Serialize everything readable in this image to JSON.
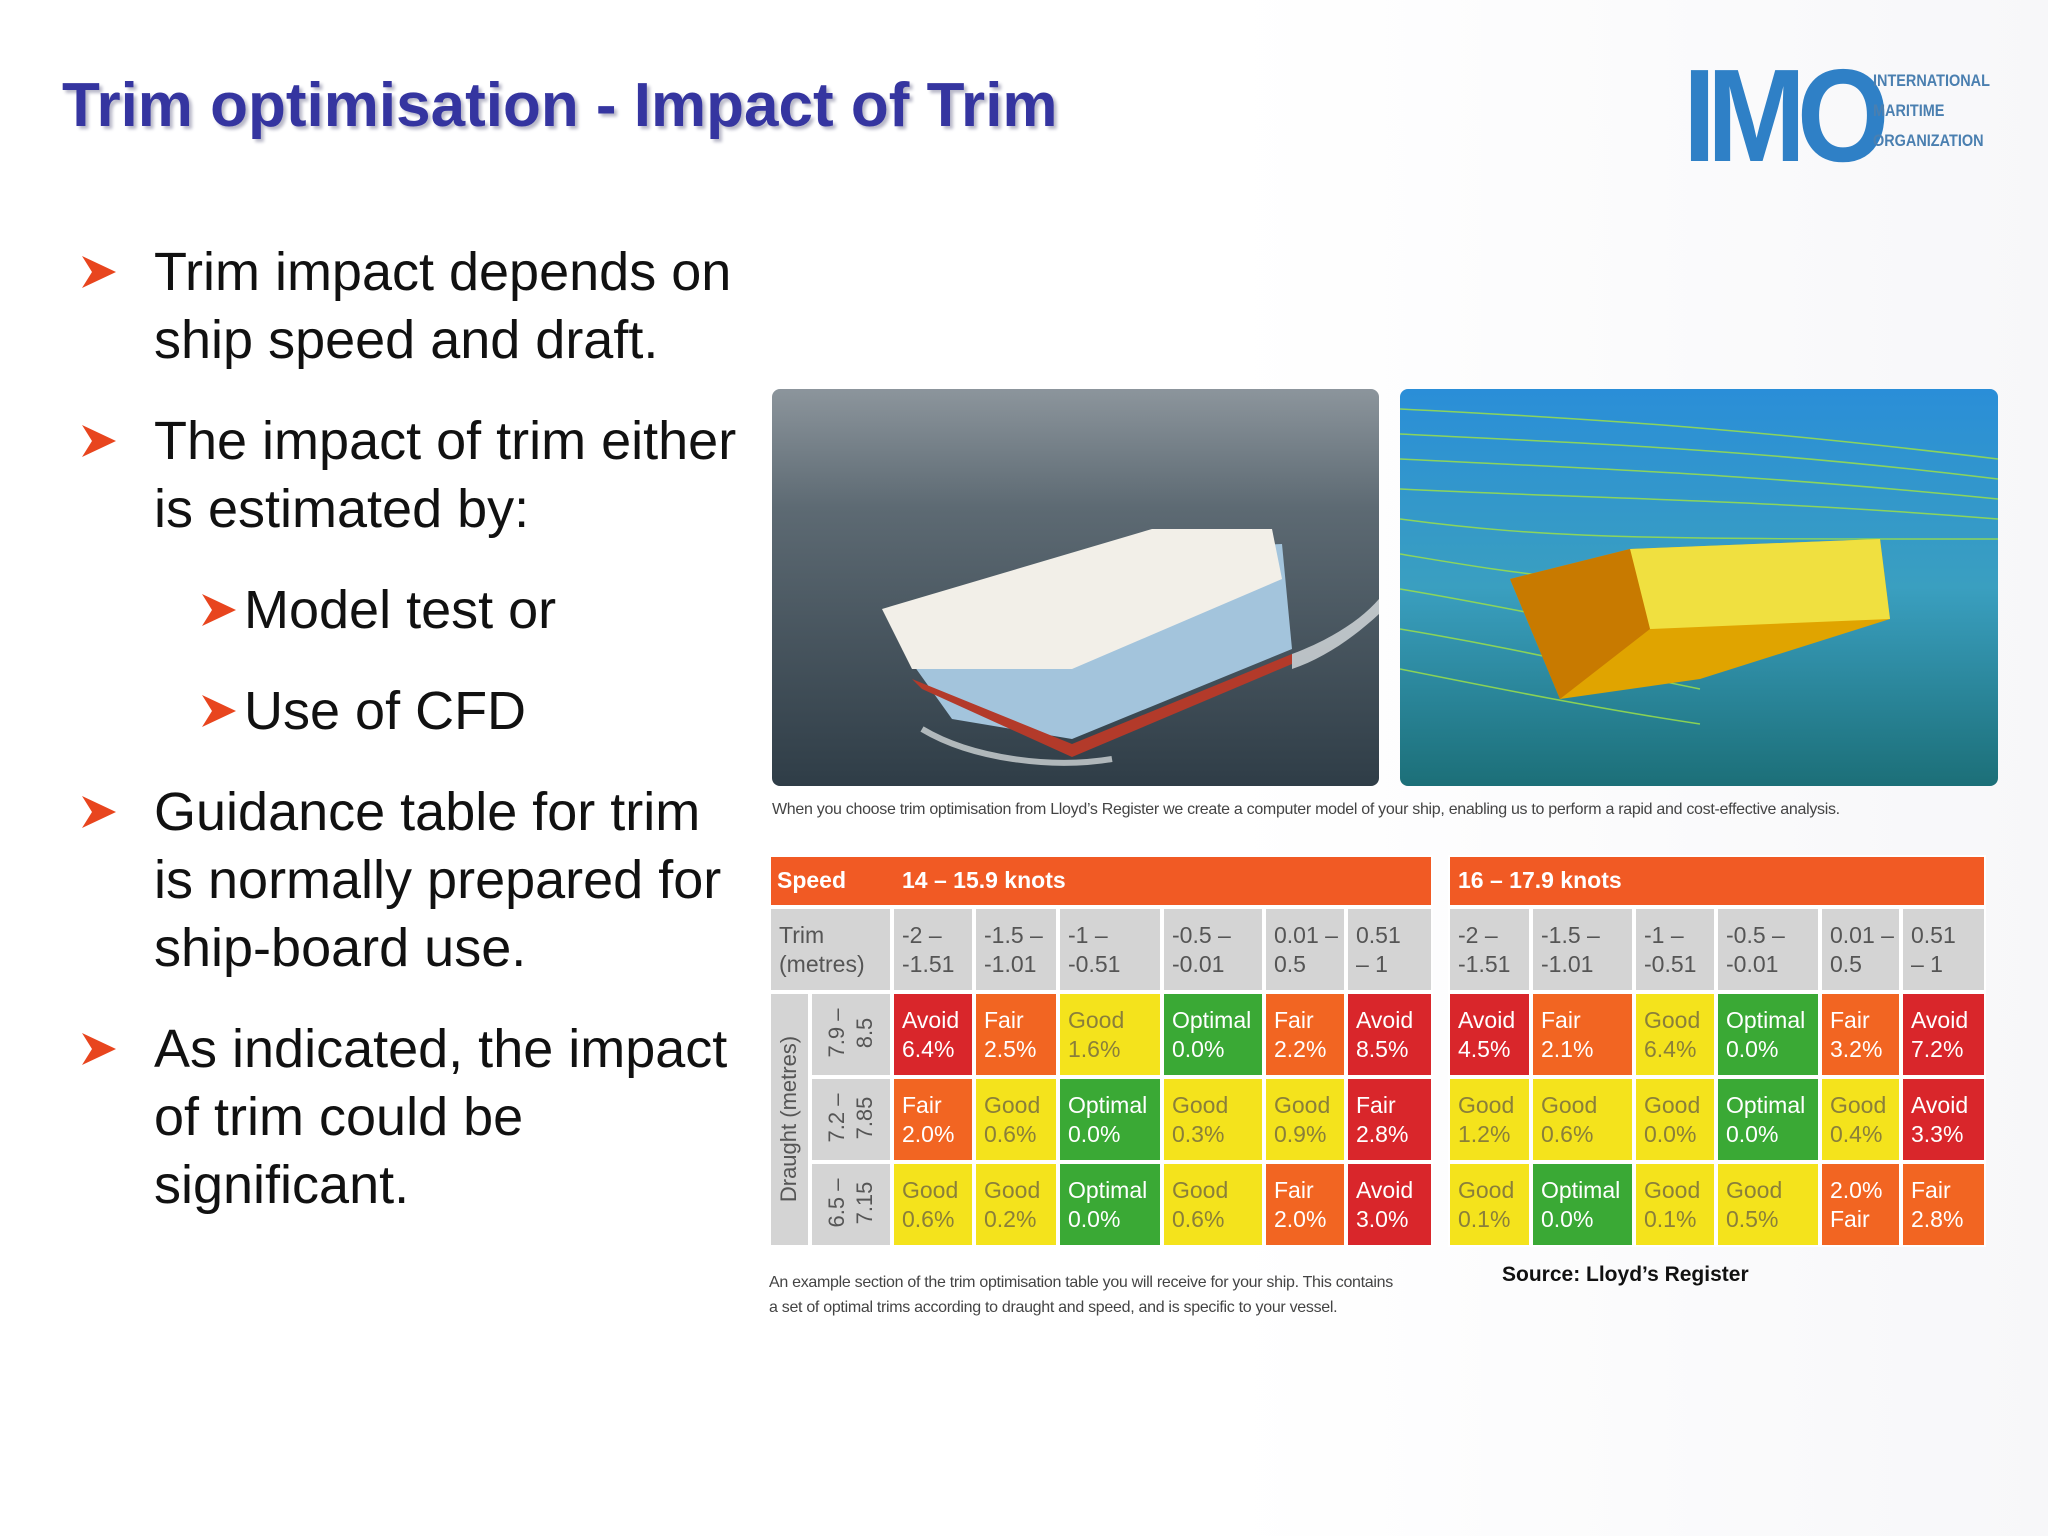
{
  "header": {
    "title": "Trim optimisation - Impact of Trim",
    "logo": {
      "letters": "IMO",
      "lines": [
        "INTERNATIONAL",
        "MARITIME",
        "ORGANIZATION"
      ]
    }
  },
  "bullets": [
    {
      "text": "Trim impact depends on ship speed and draft."
    },
    {
      "text": "The impact of trim either is estimated by:",
      "sub": [
        "Model test or",
        "Use of CFD"
      ]
    },
    {
      "text": "Guidance table for trim is normally prepared for ship-board use."
    },
    {
      "text": "As indicated, the impact of trim could be significant."
    }
  ],
  "figure": {
    "caption": "When you choose trim optimisation from Lloyd’s Register we create a computer model of your ship, enabling us to perform a rapid and cost-effective analysis."
  },
  "tables": [
    {
      "speed_label": "Speed",
      "speed": "14 – 15.9 knots",
      "trim_label": [
        "Trim",
        "(metres)"
      ],
      "draught_label": "Draught (metres)",
      "trims": [
        [
          "-2 –",
          "-1.51"
        ],
        [
          "-1.5 –",
          "-1.01"
        ],
        [
          "-1 –",
          "-0.51"
        ],
        [
          "-0.5 –",
          "-0.01"
        ],
        [
          "0.01 –",
          "0.5"
        ],
        [
          "0.51",
          "– 1"
        ]
      ],
      "rows": [
        {
          "draught": [
            "7.9 –",
            "8.5"
          ],
          "cells": [
            {
              "lines": [
                "Avoid",
                "6.4%"
              ],
              "color": "#d9262b"
            },
            {
              "lines": [
                "Fair",
                "2.5%"
              ],
              "color": "#f26522"
            },
            {
              "lines": [
                "Good",
                "1.6%"
              ],
              "color": "#f4e31c"
            },
            {
              "lines": [
                "Optimal",
                "0.0%"
              ],
              "color": "#3aa935"
            },
            {
              "lines": [
                "Fair",
                "2.2%"
              ],
              "color": "#f26522"
            },
            {
              "lines": [
                "Avoid",
                "8.5%"
              ],
              "color": "#d9262b"
            }
          ]
        },
        {
          "draught": [
            "7.2 –",
            "7.85"
          ],
          "cells": [
            {
              "lines": [
                "Fair",
                "2.0%"
              ],
              "color": "#f26522"
            },
            {
              "lines": [
                "Good",
                "0.6%"
              ],
              "color": "#f4e31c"
            },
            {
              "lines": [
                "Optimal",
                "0.0%"
              ],
              "color": "#3aa935"
            },
            {
              "lines": [
                "Good",
                "0.3%"
              ],
              "color": "#f4e31c"
            },
            {
              "lines": [
                "Good",
                "0.9%"
              ],
              "color": "#f4e31c"
            },
            {
              "lines": [
                "Fair",
                "2.8%"
              ],
              "color": "#d9262b"
            }
          ]
        },
        {
          "draught": [
            "6.5 –",
            "7.15"
          ],
          "cells": [
            {
              "lines": [
                "Good",
                "0.6%"
              ],
              "color": "#f4e31c"
            },
            {
              "lines": [
                "Good",
                "0.2%"
              ],
              "color": "#f4e31c"
            },
            {
              "lines": [
                "Optimal",
                "0.0%"
              ],
              "color": "#3aa935"
            },
            {
              "lines": [
                "Good",
                "0.6%"
              ],
              "color": "#f4e31c"
            },
            {
              "lines": [
                "Fair",
                "2.0%"
              ],
              "color": "#f26522"
            },
            {
              "lines": [
                "Avoid",
                "3.0%"
              ],
              "color": "#d9262b"
            }
          ]
        }
      ]
    },
    {
      "speed": "16 – 17.9 knots",
      "trims": [
        [
          "-2 –",
          "-1.51"
        ],
        [
          "-1.5 –",
          "-1.01"
        ],
        [
          "-1 –",
          "-0.51"
        ],
        [
          "-0.5 –",
          "-0.01"
        ],
        [
          "0.01 –",
          "0.5"
        ],
        [
          "0.51",
          "– 1"
        ]
      ],
      "rows": [
        {
          "cells": [
            {
              "lines": [
                "Avoid",
                "4.5%"
              ],
              "color": "#d9262b"
            },
            {
              "lines": [
                "Fair",
                "2.1%"
              ],
              "color": "#f26522"
            },
            {
              "lines": [
                "Good",
                "6.4%"
              ],
              "color": "#f4e31c"
            },
            {
              "lines": [
                "Optimal",
                "0.0%"
              ],
              "color": "#3aa935"
            },
            {
              "lines": [
                "Fair",
                "3.2%"
              ],
              "color": "#f26522"
            },
            {
              "lines": [
                "Avoid",
                "7.2%"
              ],
              "color": "#d9262b"
            }
          ]
        },
        {
          "cells": [
            {
              "lines": [
                "Good",
                "1.2%"
              ],
              "color": "#f4e31c"
            },
            {
              "lines": [
                "Good",
                "0.6%"
              ],
              "color": "#f4e31c"
            },
            {
              "lines": [
                "Good",
                "0.0%"
              ],
              "color": "#f4e31c"
            },
            {
              "lines": [
                "Optimal",
                "0.0%"
              ],
              "color": "#3aa935"
            },
            {
              "lines": [
                "Good",
                "0.4%"
              ],
              "color": "#f4e31c"
            },
            {
              "lines": [
                "Avoid",
                "3.3%"
              ],
              "color": "#d9262b"
            }
          ]
        },
        {
          "cells": [
            {
              "lines": [
                "Good",
                "0.1%"
              ],
              "color": "#f4e31c"
            },
            {
              "lines": [
                "Optimal",
                "0.0%"
              ],
              "color": "#3aa935"
            },
            {
              "lines": [
                "Good",
                "0.1%"
              ],
              "color": "#f4e31c"
            },
            {
              "lines": [
                "Good",
                "0.5%"
              ],
              "color": "#f4e31c"
            },
            {
              "lines": [
                "2.0%",
                "Fair"
              ],
              "color": "#f26522"
            },
            {
              "lines": [
                "Fair",
                "2.8%"
              ],
              "color": "#f26522"
            }
          ]
        }
      ]
    }
  ],
  "table_caption": [
    "An example section of the trim optimisation table you will receive for your ship. This contains",
    "a set of optimal trims according to draught and speed, and is specific to your vessel."
  ],
  "source": "Source: Lloyd’s Register"
}
